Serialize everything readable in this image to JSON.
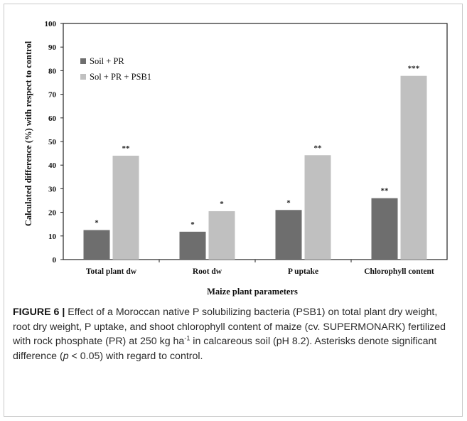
{
  "chart_data": {
    "type": "bar",
    "categories": [
      "Total plant dw",
      "Root dw",
      "P uptake",
      "Chlorophyll content"
    ],
    "series": [
      {
        "name": "Soil + PR",
        "values": [
          12.5,
          11.8,
          21.0,
          26.0
        ],
        "labels": [
          "*",
          "*",
          "*",
          "**"
        ],
        "color": "#6e6e6e"
      },
      {
        "name": "Sol + PR + PSB1",
        "values": [
          44.0,
          20.5,
          44.2,
          77.8
        ],
        "labels": [
          "**",
          "*",
          "**",
          "***"
        ],
        "color": "#c0c0c0"
      }
    ],
    "title": "",
    "xlabel": "Maize plant parameters",
    "ylabel": "Calculated difference (%) with respect to control",
    "ylim": [
      0,
      100
    ],
    "yticks": [
      0,
      10,
      20,
      30,
      40,
      50,
      60,
      70,
      80,
      90,
      100
    ],
    "grid": false,
    "legend": "top-left"
  },
  "caption": {
    "label": "FIGURE 6 |",
    "text_1": "Effect of a Moroccan native P solubilizing bacteria (PSB1) on total plant dry weight, root dry weight, P uptake, and shoot chlorophyll content of maize (cv. SUPERMONARK) fertilized with rock phosphate (PR) at 250 kg ha",
    "superscript": "-1",
    "text_2": " in calcareous soil (pH 8.2). Asterisks denote significant difference (",
    "italic": "p",
    "text_3": " < 0.05) with regard to control."
  }
}
